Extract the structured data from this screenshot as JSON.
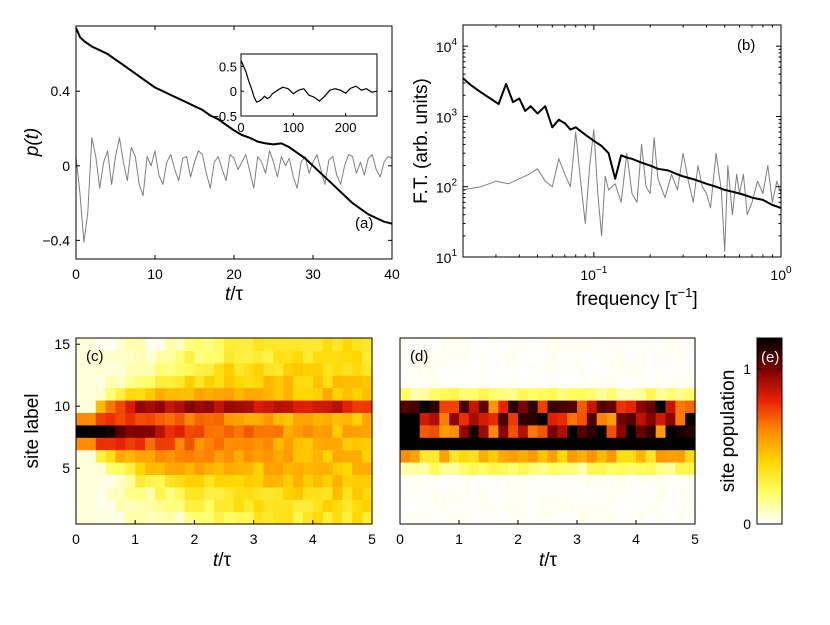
{
  "chart_data": [
    {
      "id": "a",
      "type": "line",
      "panel_label": "(a)",
      "ylabel_main": "p",
      "ylabel_arg": "(t)",
      "xlabel_main": "t",
      "xlabel_unit": "/τ",
      "xlim": [
        0,
        40
      ],
      "ylim": [
        -0.5,
        0.75
      ],
      "xticks": [
        0,
        10,
        20,
        30,
        40
      ],
      "xtick_labels": [
        "0",
        "10",
        "20",
        "30",
        "40"
      ],
      "yticks": [
        -0.4,
        0,
        0.4
      ],
      "ytick_labels": [
        "−0.4",
        "0",
        "0.4"
      ],
      "series": [
        {
          "name": "black",
          "color": "#000000",
          "x": [
            0,
            0.5,
            1,
            2,
            3,
            4,
            5,
            6,
            7,
            8,
            9,
            10,
            11,
            12,
            13,
            14,
            15,
            16,
            17,
            18,
            19,
            20,
            21,
            22,
            23,
            24,
            25,
            26,
            27,
            28,
            29,
            30,
            31,
            32,
            33,
            34,
            35,
            36,
            37,
            38,
            39,
            40
          ],
          "y": [
            0.74,
            0.69,
            0.67,
            0.64,
            0.62,
            0.6,
            0.57,
            0.54,
            0.51,
            0.48,
            0.45,
            0.42,
            0.4,
            0.38,
            0.36,
            0.34,
            0.32,
            0.3,
            0.27,
            0.25,
            0.22,
            0.19,
            0.165,
            0.15,
            0.13,
            0.12,
            0.115,
            0.12,
            0.1,
            0.07,
            0.04,
            0.0,
            -0.04,
            -0.08,
            -0.12,
            -0.16,
            -0.2,
            -0.23,
            -0.26,
            -0.28,
            -0.3,
            -0.31
          ]
        },
        {
          "name": "gray",
          "color": "#7f7f7f",
          "x": [
            0,
            0.5,
            1,
            1.5,
            2,
            2.5,
            3,
            3.5,
            4,
            4.5,
            5,
            5.5,
            6,
            6.5,
            7,
            7.5,
            8,
            8.5,
            9,
            9.5,
            10,
            10.5,
            11,
            11.5,
            12,
            12.5,
            13,
            13.5,
            14,
            14.5,
            15,
            15.5,
            16,
            16.5,
            17,
            17.5,
            18,
            18.5,
            19,
            19.5,
            20,
            20.5,
            21,
            21.5,
            22,
            22.5,
            23,
            23.5,
            24,
            24.5,
            25,
            25.5,
            26,
            26.5,
            27,
            27.5,
            28,
            28.5,
            29,
            29.5,
            30,
            30.5,
            31,
            31.5,
            32,
            32.5,
            33,
            33.5,
            34,
            34.5,
            35,
            35.5,
            36,
            36.5,
            37,
            37.5,
            38,
            38.5,
            39,
            39.5,
            40
          ],
          "y": [
            0.05,
            -0.15,
            -0.41,
            -0.25,
            0.15,
            0.05,
            -0.12,
            0.02,
            0.08,
            -0.1,
            0.05,
            0.15,
            0.02,
            -0.08,
            0.1,
            0.05,
            -0.1,
            -0.16,
            0.05,
            0.0,
            0.08,
            -0.05,
            -0.1,
            0.02,
            0.06,
            -0.02,
            -0.08,
            0.04,
            0.05,
            -0.06,
            0.02,
            0.08,
            0.06,
            -0.04,
            -0.12,
            0.02,
            0.05,
            -0.02,
            -0.08,
            0.06,
            0.04,
            -0.02,
            0.02,
            0.06,
            -0.03,
            -0.12,
            0.05,
            0.02,
            -0.04,
            0.08,
            0.02,
            -0.06,
            0.05,
            0.0,
            0.04,
            -0.06,
            -0.12,
            0.02,
            0.05,
            -0.04,
            0.02,
            0.06,
            -0.02,
            -0.1,
            0.03,
            0.05,
            -0.05,
            -0.1,
            0.0,
            0.06,
            0.05,
            -0.04,
            0.02,
            -0.05,
            0.04,
            0.06,
            -0.02,
            -0.06,
            0.02,
            0.05,
            0.04
          ]
        }
      ],
      "inset": {
        "xlim": [
          0,
          260
        ],
        "ylim": [
          -0.5,
          0.75
        ],
        "xticks": [
          0,
          100,
          200
        ],
        "xtick_labels": [
          "0",
          "100",
          "200"
        ],
        "yticks": [
          -0.5,
          0,
          0.5
        ],
        "ytick_labels": [
          "−0.5",
          "0",
          "0.5"
        ],
        "x": [
          0,
          5,
          10,
          15,
          20,
          25,
          30,
          35,
          40,
          45,
          50,
          55,
          60,
          70,
          80,
          90,
          100,
          110,
          120,
          130,
          140,
          150,
          160,
          170,
          180,
          190,
          200,
          210,
          220,
          230,
          240,
          250,
          260
        ],
        "y": [
          0.62,
          0.5,
          0.38,
          0.2,
          0.05,
          -0.12,
          -0.22,
          -0.2,
          -0.16,
          -0.1,
          -0.15,
          -0.12,
          -0.05,
          0.02,
          0.08,
          0.05,
          -0.05,
          0.02,
          0.05,
          -0.08,
          -0.12,
          -0.2,
          -0.1,
          0.02,
          0.05,
          0.02,
          -0.04,
          0.06,
          0.1,
          0.02,
          0.05,
          -0.02,
          0.0
        ]
      }
    },
    {
      "id": "b",
      "type": "line",
      "panel_label": "(b)",
      "xscale": "log",
      "yscale": "log",
      "ylabel": "F.T. (arb. units)",
      "xlabel_main": "frequency [τ",
      "xlabel_sup": "−1",
      "xlabel_close": "]",
      "xlim": [
        0.02,
        1
      ],
      "ylim": [
        10,
        20000
      ],
      "xticks": [
        0.1,
        1
      ],
      "xtick_bases": [
        "10",
        "10"
      ],
      "xtick_exps": [
        "−1",
        "0"
      ],
      "yticks": [
        10,
        100,
        1000,
        10000
      ],
      "ytick_bases": [
        "10",
        "10",
        "10",
        "10"
      ],
      "ytick_exps": [
        "1",
        "2",
        "3",
        "4"
      ],
      "series": [
        {
          "name": "black",
          "color": "#000000",
          "x": [
            0.02,
            0.022,
            0.025,
            0.028,
            0.031,
            0.034,
            0.037,
            0.04,
            0.043,
            0.046,
            0.05,
            0.055,
            0.06,
            0.065,
            0.07,
            0.075,
            0.08,
            0.09,
            0.1,
            0.11,
            0.12,
            0.13,
            0.14,
            0.15,
            0.16,
            0.18,
            0.2,
            0.22,
            0.25,
            0.28,
            0.3,
            0.35,
            0.4,
            0.45,
            0.5,
            0.55,
            0.6,
            0.65,
            0.7,
            0.8,
            0.9,
            1.0
          ],
          "y": [
            3500,
            2800,
            2200,
            1800,
            1500,
            2900,
            1600,
            1800,
            1200,
            1400,
            1100,
            1400,
            700,
            900,
            800,
            650,
            700,
            550,
            450,
            380,
            300,
            130,
            280,
            260,
            250,
            220,
            200,
            180,
            170,
            150,
            140,
            125,
            110,
            100,
            90,
            85,
            80,
            75,
            70,
            65,
            55,
            50
          ]
        },
        {
          "name": "gray",
          "color": "#7f7f7f",
          "x": [
            0.02,
            0.025,
            0.03,
            0.035,
            0.04,
            0.045,
            0.05,
            0.055,
            0.06,
            0.065,
            0.07,
            0.075,
            0.08,
            0.085,
            0.09,
            0.095,
            0.1,
            0.105,
            0.11,
            0.115,
            0.12,
            0.13,
            0.14,
            0.15,
            0.16,
            0.17,
            0.18,
            0.19,
            0.2,
            0.21,
            0.22,
            0.24,
            0.26,
            0.28,
            0.3,
            0.32,
            0.34,
            0.36,
            0.38,
            0.4,
            0.42,
            0.45,
            0.48,
            0.5,
            0.52,
            0.55,
            0.58,
            0.6,
            0.63,
            0.66,
            0.7,
            0.75,
            0.8,
            0.85,
            0.9,
            0.95,
            1.0
          ],
          "y": [
            90,
            100,
            120,
            110,
            130,
            150,
            180,
            120,
            100,
            250,
            150,
            100,
            600,
            120,
            30,
            200,
            650,
            80,
            20,
            140,
            90,
            110,
            60,
            300,
            80,
            60,
            400,
            100,
            80,
            500,
            130,
            70,
            150,
            90,
            300,
            120,
            60,
            200,
            100,
            80,
            50,
            300,
            90,
            12,
            200,
            40,
            150,
            80,
            150,
            40,
            60,
            120,
            80,
            200,
            60,
            120,
            80
          ]
        }
      ]
    },
    {
      "id": "c",
      "type": "heatmap",
      "panel_label": "(c)",
      "ylabel": "site label",
      "xlabel_main": "t",
      "xlabel_unit": "/τ",
      "xlim": [
        0,
        5
      ],
      "ylim": [
        0.5,
        15.5
      ],
      "xticks": [
        0,
        1,
        2,
        3,
        4,
        5
      ],
      "xtick_labels": [
        "0",
        "1",
        "2",
        "3",
        "4",
        "5"
      ],
      "yticks": [
        5,
        10,
        15
      ],
      "ytick_labels": [
        "5",
        "10",
        "15"
      ],
      "n_time": 30,
      "n_sites": 15,
      "center_site": 8,
      "peak_sites": [
        10,
        8
      ],
      "colorscale_max": 1.2
    },
    {
      "id": "d",
      "type": "heatmap",
      "panel_label": "(d)",
      "xlabel_main": "t",
      "xlabel_unit": "/τ",
      "xlim": [
        0,
        5
      ],
      "ylim": [
        0.5,
        15.5
      ],
      "xticks": [
        0,
        1,
        2,
        3,
        4,
        5
      ],
      "xtick_labels": [
        "0",
        "1",
        "2",
        "3",
        "4",
        "5"
      ],
      "n_time": 30,
      "n_sites": 15,
      "localized_sites": [
        6,
        7,
        8,
        9,
        10
      ],
      "colorscale_max": 1.2
    },
    {
      "id": "e",
      "type": "colorbar",
      "panel_label": "(e)",
      "label": "site population",
      "range": [
        0,
        1.2
      ],
      "ticks": [
        0,
        1
      ],
      "tick_labels": [
        "0",
        "1"
      ],
      "stops": [
        "#ffffff",
        "#ffff66",
        "#ffd700",
        "#ff8c00",
        "#e82000",
        "#7a0000",
        "#000000"
      ]
    }
  ]
}
